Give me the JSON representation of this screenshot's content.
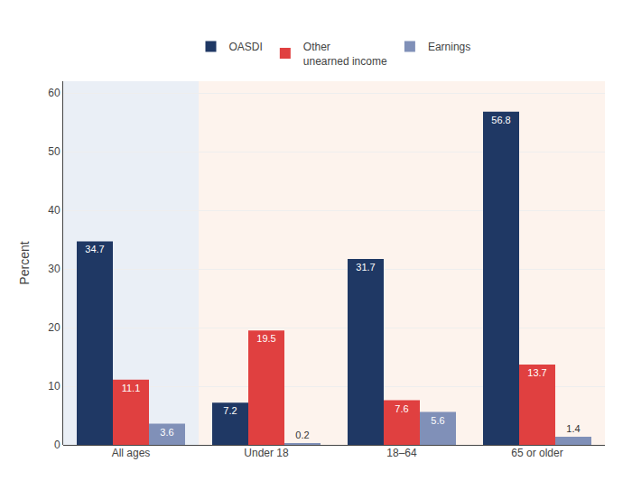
{
  "chart_data": {
    "type": "bar",
    "ylabel": "Percent",
    "categories": [
      "All ages",
      "Under 18",
      "18–64",
      "65 or older"
    ],
    "series": [
      {
        "name": "OASDI",
        "color": "#1f3864",
        "values": [
          34.7,
          7.2,
          31.7,
          56.8
        ]
      },
      {
        "name": "Other\nunearned income",
        "color": "#e04040",
        "values": [
          11.1,
          19.5,
          7.6,
          13.7
        ]
      },
      {
        "name": "Earnings",
        "color": "#8090b8",
        "values": [
          3.6,
          0.2,
          5.6,
          1.4
        ]
      }
    ],
    "ylim": [
      0,
      62
    ],
    "yticks": [
      0,
      10,
      20,
      30,
      40,
      50,
      60
    ],
    "grid": true,
    "legend": "top",
    "data_labels": true
  }
}
